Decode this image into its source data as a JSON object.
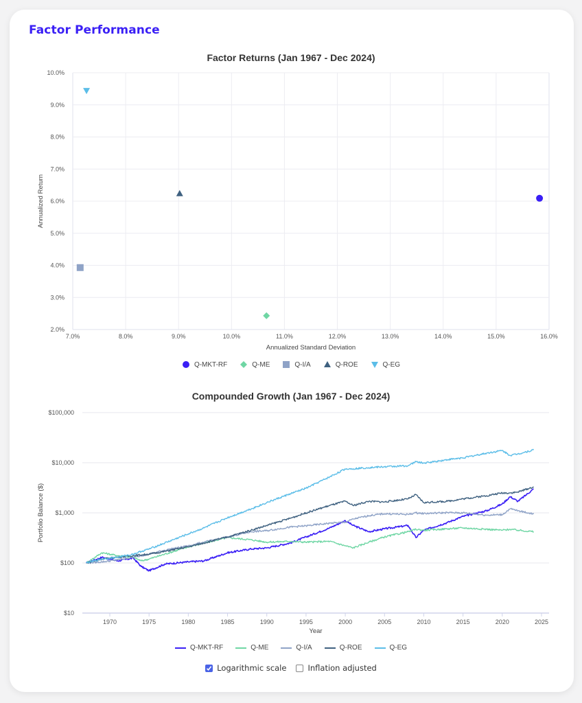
{
  "page": {
    "title": "Factor Performance"
  },
  "controls": {
    "log_scale": {
      "label": "Logarithmic scale",
      "checked": true
    },
    "inflation_adjusted": {
      "label": "Inflation adjusted",
      "checked": false
    }
  },
  "series_colors": {
    "Q-MKT-RF": "#3a1ff5",
    "Q-ME": "#6fd6a4",
    "Q-I/A": "#8fa3c7",
    "Q-ROE": "#3f6180",
    "Q-EG": "#5bbde8"
  },
  "chart_data": [
    {
      "type": "scatter",
      "title": "Factor Returns (Jan 1967 - Dec 2024)",
      "xlabel": "Annualized Standard Deviation",
      "ylabel": "Annualized Return",
      "xlim": [
        7.0,
        16.0
      ],
      "ylim": [
        2.0,
        10.0
      ],
      "x_ticks": [
        "7.0%",
        "8.0%",
        "9.0%",
        "10.0%",
        "11.0%",
        "12.0%",
        "13.0%",
        "14.0%",
        "15.0%",
        "16.0%"
      ],
      "y_ticks": [
        "2.0%",
        "3.0%",
        "4.0%",
        "5.0%",
        "6.0%",
        "7.0%",
        "8.0%",
        "9.0%",
        "10.0%"
      ],
      "grid": true,
      "legend_position": "bottom",
      "points": [
        {
          "name": "Q-MKT-RF",
          "x": 15.82,
          "y": 6.09,
          "marker": "circle"
        },
        {
          "name": "Q-ME",
          "x": 10.66,
          "y": 2.43,
          "marker": "diamond"
        },
        {
          "name": "Q-I/A",
          "x": 7.14,
          "y": 3.93,
          "marker": "square"
        },
        {
          "name": "Q-ROE",
          "x": 9.02,
          "y": 6.24,
          "marker": "triangle-up"
        },
        {
          "name": "Q-EG",
          "x": 7.26,
          "y": 9.44,
          "marker": "triangle-down"
        }
      ]
    },
    {
      "type": "line",
      "title": "Compounded Growth (Jan 1967 - Dec 2024)",
      "xlabel": "Year",
      "ylabel": "Portfolio Balance ($)",
      "y_scale": "log",
      "ylim": [
        10,
        100000
      ],
      "xlim": [
        1967,
        2025
      ],
      "x_ticks": [
        "1970",
        "1975",
        "1980",
        "1985",
        "1990",
        "1995",
        "2000",
        "2005",
        "2010",
        "2015",
        "2020",
        "2025"
      ],
      "y_ticks": [
        "$10",
        "$100",
        "$1,000",
        "$10,000",
        "$100,000"
      ],
      "grid": true,
      "legend_position": "bottom",
      "x": [
        1967,
        1969,
        1971,
        1973,
        1974,
        1975,
        1977,
        1980,
        1982,
        1985,
        1988,
        1990,
        1993,
        1995,
        1998,
        2000,
        2001,
        2003,
        2005,
        2008,
        2009,
        2010,
        2013,
        2015,
        2018,
        2020,
        2021,
        2022,
        2024
      ],
      "series": [
        {
          "name": "Q-MKT-RF",
          "values": [
            100,
            130,
            110,
            125,
            85,
            70,
            95,
            105,
            110,
            160,
            190,
            200,
            250,
            330,
            500,
            700,
            560,
            420,
            480,
            560,
            320,
            450,
            640,
            850,
            1100,
            1500,
            2100,
            1700,
            3000
          ]
        },
        {
          "name": "Q-ME",
          "values": [
            100,
            160,
            140,
            130,
            110,
            120,
            150,
            210,
            250,
            320,
            290,
            260,
            270,
            260,
            270,
            220,
            200,
            260,
            330,
            420,
            470,
            450,
            480,
            500,
            470,
            450,
            470,
            450,
            420
          ]
        },
        {
          "name": "Q-I/A",
          "values": [
            100,
            105,
            115,
            130,
            140,
            150,
            180,
            220,
            260,
            330,
            420,
            440,
            520,
            550,
            620,
            650,
            750,
            880,
            960,
            930,
            1000,
            970,
            1010,
            1000,
            900,
            920,
            1200,
            1100,
            950
          ]
        },
        {
          "name": "Q-ROE",
          "values": [
            100,
            120,
            130,
            140,
            145,
            150,
            170,
            210,
            250,
            330,
            450,
            560,
            780,
            1000,
            1400,
            1700,
            1400,
            1700,
            1650,
            1900,
            2300,
            1600,
            1700,
            1900,
            2200,
            2500,
            2500,
            2600,
            3300
          ]
        },
        {
          "name": "Q-EG",
          "values": [
            100,
            120,
            130,
            150,
            170,
            190,
            250,
            380,
            500,
            800,
            1200,
            1600,
            2400,
            3100,
            5200,
            7500,
            7600,
            8000,
            8300,
            8700,
            10500,
            9800,
            11500,
            12500,
            15500,
            17500,
            14000,
            15000,
            18000
          ]
        }
      ]
    }
  ]
}
